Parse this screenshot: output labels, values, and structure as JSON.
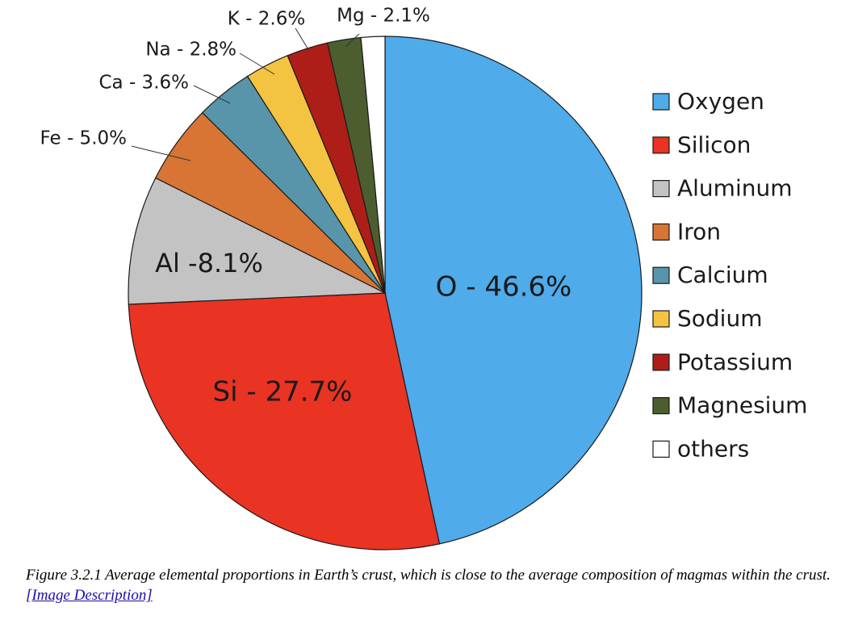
{
  "chart_data": {
    "type": "pie",
    "title": "",
    "start": "12 o'clock, clockwise",
    "slices": [
      {
        "name": "Oxygen",
        "label": "O - 46.6%",
        "value": 46.6,
        "color": "#4FABEA",
        "label_inside": true
      },
      {
        "name": "Silicon",
        "label": "Si - 27.7%",
        "value": 27.7,
        "color": "#E93323",
        "label_inside": true
      },
      {
        "name": "Aluminum",
        "label": "Al -8.1%",
        "value": 8.1,
        "color": "#C3C3C3",
        "label_inside": true
      },
      {
        "name": "Iron",
        "label": "Fe - 5.0%",
        "value": 5.0,
        "color": "#D87534",
        "label_inside": false
      },
      {
        "name": "Calcium",
        "label": "Ca - 3.6%",
        "value": 3.6,
        "color": "#5895AA",
        "label_inside": false
      },
      {
        "name": "Sodium",
        "label": "Na - 2.8%",
        "value": 2.8,
        "color": "#F5C342",
        "label_inside": false
      },
      {
        "name": "Potassium",
        "label": "K - 2.6%",
        "value": 2.6,
        "color": "#AE1E18",
        "label_inside": false
      },
      {
        "name": "Magnesium",
        "label": "Mg - 2.1%",
        "value": 2.1,
        "color": "#4C5E2F",
        "label_inside": false
      },
      {
        "name": "others",
        "label": "",
        "value": 1.5,
        "color": "#FFFFFF",
        "label_inside": false
      }
    ],
    "legend_position": "right"
  },
  "caption": {
    "text": "Figure 3.2.1 Average elemental proportions in Earth’s crust, which is close to the average composition of magmas within the crust.",
    "link_text": "[Image Description]"
  }
}
